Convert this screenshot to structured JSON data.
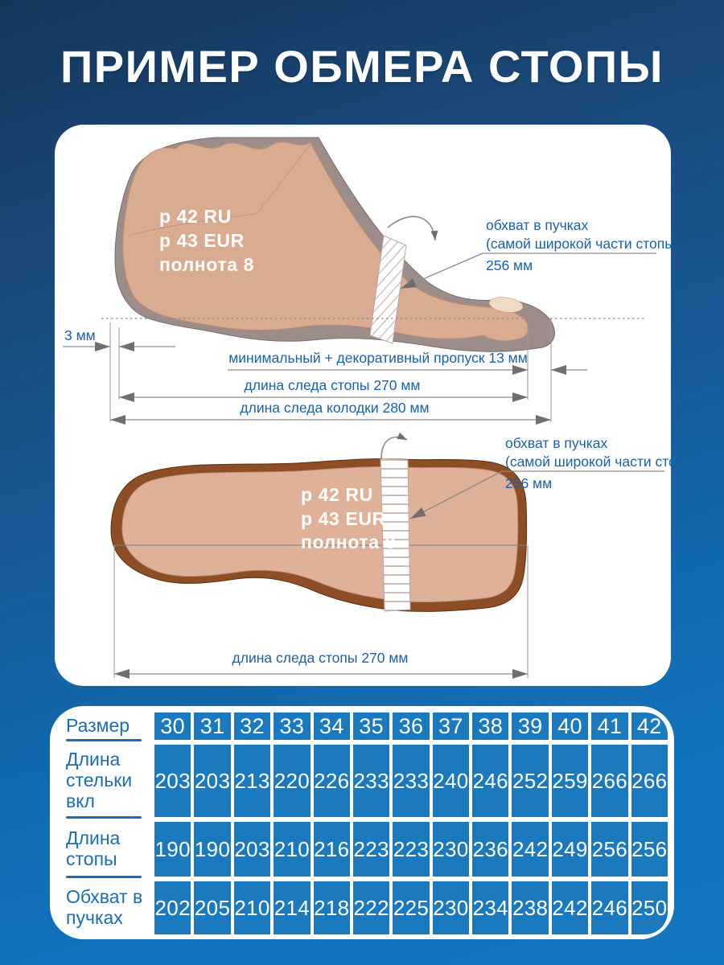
{
  "title": "ПРИМЕР ОБМЕРА СТОПЫ",
  "colors": {
    "background_top": "#14365b",
    "background_bottom": "#1277c1",
    "panel": "#ffffff",
    "table_cell_blue": "#1b79bd",
    "label_blue": "#1b6cb8",
    "annotation_blue": "#1862ae",
    "dimension_gray": "#8a8a8a",
    "foot_skin": "#d9ab91",
    "last_gray": "#9c8d8a",
    "sole_brown": "#8d4e26",
    "insole_tan": "#dfb199"
  },
  "side_view": {
    "size_lines": [
      "р 42 RU",
      "р 43 EUR",
      "полнота 8"
    ],
    "girth": [
      "обхват в пучках",
      "(самой широкой части стопы)",
      "256 мм"
    ],
    "heel_gap": "3 мм",
    "toe_gap": "минимальный + декоративный пропуск 13 мм",
    "foot_length": "длина следа стопы 270 мм",
    "last_length": "длина следа колодки 280 мм"
  },
  "bottom_view": {
    "size_lines": [
      "р 42 RU",
      "р 43 EUR",
      "полнота 8"
    ],
    "girth": [
      "обхват в пучках",
      "(самой широкой части стопы)",
      "256 мм"
    ],
    "foot_length": "длина следа стопы 270 мм"
  },
  "size_table": {
    "header_label": "Размер",
    "sizes": [
      "30",
      "31",
      "32",
      "33",
      "34",
      "35",
      "36",
      "37",
      "38",
      "39",
      "40",
      "41",
      "42"
    ],
    "rows": [
      {
        "label": "Длина стельки вкл",
        "values": [
          "203",
          "203",
          "213",
          "220",
          "226",
          "233",
          "233",
          "240",
          "246",
          "252",
          "259",
          "266",
          "266"
        ]
      },
      {
        "label": "Длина стопы",
        "values": [
          "190",
          "190",
          "203",
          "210",
          "216",
          "223",
          "223",
          "230",
          "236",
          "242",
          "249",
          "256",
          "256"
        ]
      },
      {
        "label": "Обхват в пучках",
        "values": [
          "202",
          "205",
          "210",
          "214",
          "218",
          "222",
          "225",
          "230",
          "234",
          "238",
          "242",
          "246",
          "250"
        ]
      }
    ]
  }
}
